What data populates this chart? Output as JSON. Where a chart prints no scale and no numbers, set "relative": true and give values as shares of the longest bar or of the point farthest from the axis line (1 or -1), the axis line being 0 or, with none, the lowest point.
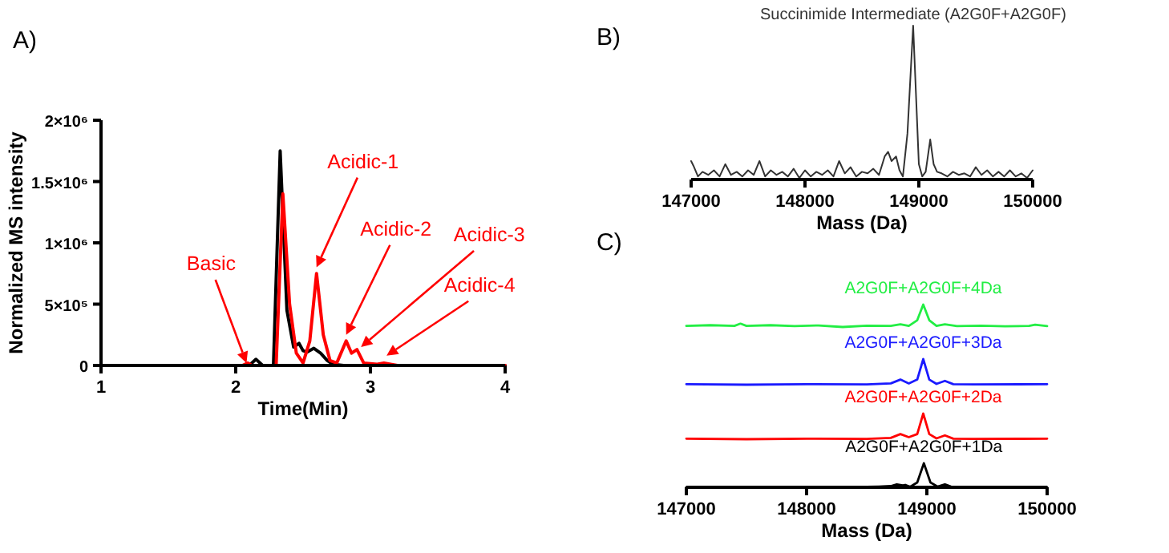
{
  "chart_data": [
    {
      "type": "line",
      "xlabel": "Time(Min)",
      "ylabel": "Normalized MS intensity",
      "xlim": [
        1,
        4
      ],
      "xticks": [
        1,
        2,
        3,
        4
      ],
      "ylim": [
        0,
        2000000
      ],
      "yticks": [
        0,
        {
          "value": 500000,
          "label": "5×10⁵"
        },
        {
          "value": 1000000,
          "label": "1×10⁶"
        },
        {
          "value": 1500000,
          "label": "1.5×10⁶"
        },
        {
          "value": 2000000,
          "label": "2×10⁶"
        }
      ],
      "grid": false,
      "annotations": [
        "A)",
        {
          "text": "Basic",
          "x": 2.08,
          "y": 20000
        },
        {
          "text": "Acidic-1",
          "x": 2.6,
          "y": 800000
        },
        {
          "text": "Acidic-2",
          "x": 2.82,
          "y": 250000
        },
        {
          "text": "Acidic-3",
          "x": 2.93,
          "y": 150000
        },
        {
          "text": "Acidic-4",
          "x": 3.12,
          "y": 80000
        }
      ],
      "series": [
        {
          "color": "#000000",
          "x": [
            1,
            2.1,
            2.15,
            2.2,
            2.28,
            2.33,
            2.38,
            2.43,
            2.47,
            2.5,
            2.53,
            2.58,
            2.63,
            2.68,
            2.72,
            2.8,
            3.6,
            3.7,
            3.8,
            4
          ],
          "values": [
            0,
            0,
            50000,
            0,
            0,
            1750000,
            450000,
            150000,
            180000,
            120000,
            110000,
            140000,
            100000,
            40000,
            10000,
            0,
            0,
            0,
            0,
            0
          ]
        },
        {
          "color": "#ff0000",
          "x": [
            1,
            2.05,
            2.09,
            2.12,
            2.3,
            2.35,
            2.4,
            2.45,
            2.5,
            2.55,
            2.6,
            2.65,
            2.7,
            2.75,
            2.82,
            2.86,
            2.9,
            2.95,
            3.05,
            3.1,
            3.2,
            4
          ],
          "values": [
            0,
            0,
            20000,
            0,
            0,
            1400000,
            500000,
            100000,
            20000,
            200000,
            750000,
            250000,
            40000,
            20000,
            200000,
            100000,
            130000,
            20000,
            10000,
            20000,
            0,
            0
          ]
        }
      ]
    },
    {
      "type": "line",
      "relative": true,
      "xlabel": "Mass (Da)",
      "xlim": [
        147000,
        150000
      ],
      "xticks": [
        147000,
        148000,
        149000,
        150000
      ],
      "grid": false,
      "annotations": [
        "B)",
        {
          "text": "Succinimide Intermediate (A2G0F+A2G0F)",
          "x": 148950,
          "y": 1
        }
      ],
      "series": [
        {
          "color": "#333333",
          "x": [
            147000,
            147020,
            147060,
            147100,
            147150,
            147200,
            147250,
            147300,
            147350,
            147400,
            147450,
            147500,
            147550,
            147600,
            147650,
            147700,
            147750,
            147800,
            147850,
            147900,
            147950,
            148000,
            148050,
            148100,
            148150,
            148200,
            148250,
            148300,
            148350,
            148400,
            148450,
            148500,
            148550,
            148600,
            148650,
            148700,
            148730,
            148760,
            148800,
            148830,
            148860,
            148900,
            148950,
            149000,
            149030,
            149060,
            149100,
            149130,
            149160,
            149200,
            149250,
            149300,
            149350,
            149400,
            149450,
            149500,
            149550,
            149600,
            149650,
            149700,
            149750,
            149800,
            149850,
            149900,
            149950,
            150000
          ],
          "values": [
            0.12,
            0.09,
            0.02,
            0.05,
            0.03,
            0.06,
            0.02,
            0.1,
            0.03,
            0.05,
            0.02,
            0.06,
            0.03,
            0.12,
            0.02,
            0.06,
            0.03,
            0.05,
            0.02,
            0.07,
            0.01,
            0.06,
            0.02,
            0.05,
            0.03,
            0.06,
            0.02,
            0.12,
            0.04,
            0.08,
            0.02,
            0.05,
            0.04,
            0.07,
            0.03,
            0.15,
            0.18,
            0.12,
            0.15,
            0.06,
            0.02,
            0.3,
            1,
            0.1,
            0.02,
            0.05,
            0.26,
            0.1,
            0.05,
            0.04,
            0.02,
            0.05,
            0.03,
            0.04,
            0.02,
            0.08,
            0.03,
            0.06,
            0.02,
            0.05,
            0.02,
            0.06,
            0.02,
            0.04,
            0.01,
            0.06
          ]
        }
      ]
    },
    {
      "type": "line",
      "relative": true,
      "tick_labels": false,
      "xlim": [
        147000,
        150000
      ],
      "grid": false,
      "annotations": [
        "C)"
      ],
      "series": [
        {
          "name": "A2G0F+A2G0F+4Da",
          "color": "#22ee44",
          "x": [
            147000,
            147200,
            147400,
            147450,
            147500,
            147700,
            147900,
            148100,
            148300,
            148500,
            148700,
            148780,
            148850,
            148920,
            148970,
            149020,
            149080,
            149150,
            149250,
            149450,
            149650,
            149850,
            149900,
            150000
          ],
          "values": [
            0.05,
            0.08,
            0.05,
            0.15,
            0.05,
            0.08,
            0.04,
            0.07,
            0,
            0.06,
            0.05,
            0.12,
            0.05,
            0.3,
            1,
            0.3,
            0.05,
            0.12,
            0.04,
            0.06,
            0.03,
            0.05,
            0.1,
            0.04
          ]
        }
      ]
    },
    {
      "type": "line",
      "relative": true,
      "tick_labels": false,
      "xlim": [
        147000,
        150000
      ],
      "grid": false,
      "series": [
        {
          "name": "A2G0F+A2G0F+3Da",
          "color": "#1a1aff",
          "x": [
            147000,
            147500,
            148000,
            148500,
            148700,
            148780,
            148850,
            148920,
            148970,
            149020,
            149080,
            149150,
            149220,
            149400,
            150000
          ],
          "values": [
            0.02,
            0,
            0.02,
            0.01,
            0.05,
            0.2,
            0.05,
            0.2,
            1,
            0.2,
            0.03,
            0.15,
            0.02,
            0.01,
            0.02
          ]
        }
      ]
    },
    {
      "type": "line",
      "relative": true,
      "tick_labels": false,
      "xlim": [
        147000,
        150000
      ],
      "grid": false,
      "series": [
        {
          "name": "A2G0F+A2G0F+2Da",
          "color": "#ff0000",
          "x": [
            147000,
            147500,
            148000,
            148500,
            148700,
            148780,
            148850,
            148920,
            148970,
            149020,
            149080,
            149150,
            149220,
            149400,
            150000
          ],
          "values": [
            0.02,
            0,
            0.02,
            0.01,
            0.05,
            0.2,
            0.08,
            0.2,
            1,
            0.2,
            0.03,
            0.15,
            0.02,
            0.01,
            0.02
          ]
        }
      ]
    },
    {
      "type": "line",
      "relative": true,
      "tick_labels": "x",
      "xlabel": "Mass (Da)",
      "xlim": [
        147000,
        150000
      ],
      "xticks": [
        147000,
        148000,
        149000,
        150000
      ],
      "grid": false,
      "series": [
        {
          "name": "A2G0F+A2G0F+1Da",
          "color": "#000000",
          "x": [
            147000,
            148400,
            148500,
            148600,
            148700,
            148750,
            148800,
            148820,
            148860,
            148920,
            148975,
            149030,
            149090,
            149150,
            149200,
            149300,
            149350,
            150000
          ],
          "values": [
            0,
            0,
            0.02,
            0.03,
            0.05,
            0.12,
            0.08,
            0.1,
            0.02,
            0.2,
            1,
            0.2,
            0.03,
            0.12,
            0.03,
            0.02,
            0,
            0
          ]
        }
      ]
    }
  ]
}
